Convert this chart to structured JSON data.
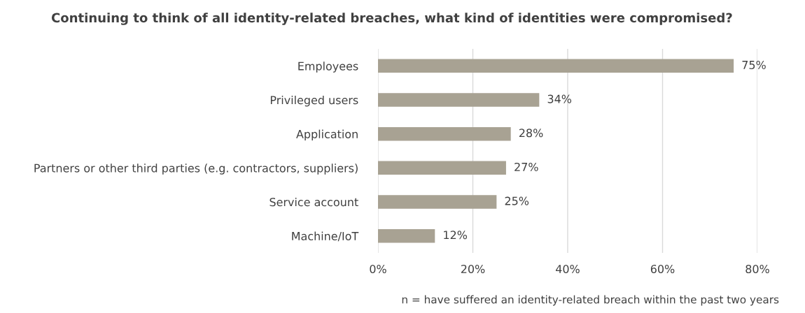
{
  "chart_data": {
    "type": "bar",
    "orientation": "horizontal",
    "title": "Continuing to think of all identity-related breaches, what kind of identities were compromised?",
    "categories": [
      "Employees",
      "Privileged users",
      "Application",
      "Partners or other third parties (e.g. contractors, suppliers)",
      "Service account",
      "Machine/IoT"
    ],
    "values": [
      75,
      34,
      28,
      27,
      25,
      12
    ],
    "value_labels": [
      "75%",
      "34%",
      "28%",
      "27%",
      "25%",
      "12%"
    ],
    "color": "#a8a293",
    "xlim": [
      0,
      80
    ],
    "xticks": [
      {
        "value": 0,
        "label": "0%"
      },
      {
        "value": 20,
        "label": "20%"
      },
      {
        "value": 40,
        "label": "40%"
      },
      {
        "value": 60,
        "label": "60%"
      },
      {
        "value": 80,
        "label": "80%"
      }
    ],
    "grid": "x",
    "legend": false,
    "annotations": [
      "n = have suffered an identity-related breach within the past two years"
    ]
  }
}
